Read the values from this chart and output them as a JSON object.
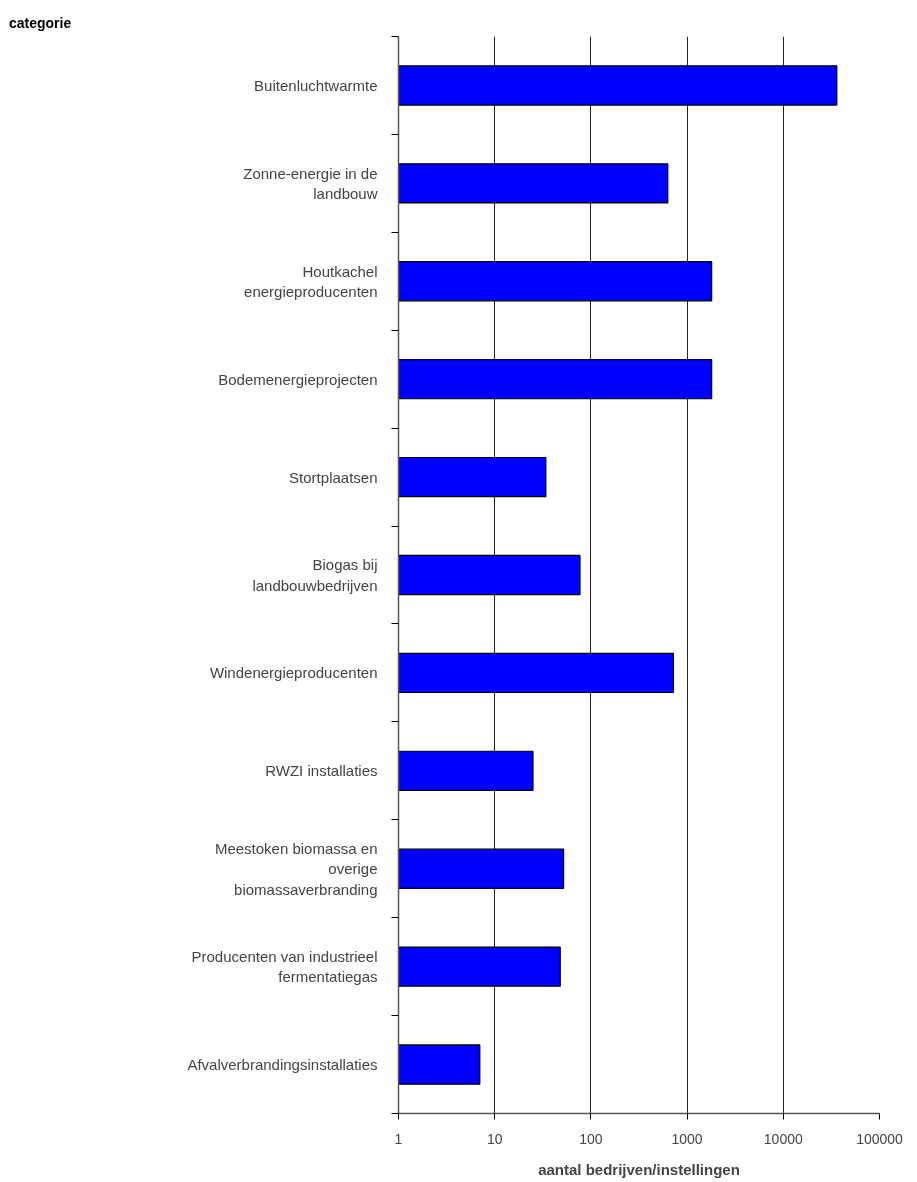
{
  "chart_data": {
    "type": "bar",
    "orientation": "horizontal",
    "log": "x",
    "annotations": [
      "categorie"
    ],
    "xlabel": "aantal bedrijven/instellingen",
    "categories": [
      "Buitenluchtwarmte",
      "Zonne-energie in de\nlandbouw",
      "Houtkachel\nenergieproducenten",
      "Bodemenergieprojecten",
      "Stortplaatsen",
      "Biogas bij\nlandbouwbedrijven",
      "Windenergieproducenten",
      "RWZI installaties",
      "Meestoken biomassa en\noverige\nbiomassaverbranding",
      "Producenten van industrieel\nfermentatiegas",
      "Afvalverbrandingsinstallaties"
    ],
    "values": [
      36000,
      630,
      1800,
      1800,
      34,
      77,
      720,
      25,
      52,
      48,
      7
    ],
    "color": "#0000ff",
    "xlim": [
      1,
      100000
    ],
    "xticks": [
      1,
      10,
      100,
      1000,
      10000,
      100000
    ],
    "grid": "x"
  }
}
